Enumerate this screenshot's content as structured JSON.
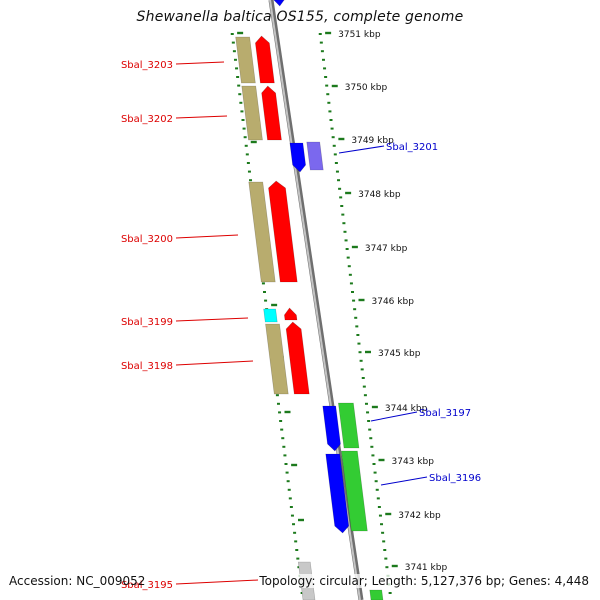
{
  "title": "Shewanella baltica OS155, complete genome",
  "footer": {
    "accession": "Accession: NC_009052",
    "summary": "Topology: circular; Length: 5,127,376 bp; Genes: 4,448"
  },
  "colors": {
    "reverse_label": "#dd0000",
    "forward_label": "#0000cc",
    "tick": "#1c7a1c",
    "backbone": "#9a9a9a",
    "cds_red": "#ff0000",
    "gene_khaki": "#b8ac6e",
    "cds_blue": "#0000ff",
    "gene_green": "#33cc33",
    "gene_cyan": "#00ffff",
    "gene_violet": "#7b68ee",
    "gene_grey": "#c8c8c8"
  },
  "scale_labels": [
    "3751 kbp",
    "3750 kbp",
    "3749 kbp",
    "3748 kbp",
    "3747 kbp",
    "3746 kbp",
    "3745 kbp",
    "3744 kbp",
    "3743 kbp",
    "3742 kbp",
    "3741 kbp"
  ],
  "reverse_genes": [
    {
      "name": "Sbal_3203",
      "color": "#dd0000"
    },
    {
      "name": "Sbal_3202",
      "color": "#dd0000"
    },
    {
      "name": "Sbal_3200",
      "color": "#dd0000"
    },
    {
      "name": "Sbal_3199",
      "color": "#dd0000"
    },
    {
      "name": "Sbal_3198",
      "color": "#dd0000"
    },
    {
      "name": "Sbal_3195",
      "color": "#dd0000"
    }
  ],
  "forward_genes": [
    {
      "name": "Sbal_3201",
      "color": "#0000cc"
    },
    {
      "name": "Sbal_3197",
      "color": "#0000cc"
    },
    {
      "name": "Sbal_3196",
      "color": "#0000cc"
    }
  ]
}
